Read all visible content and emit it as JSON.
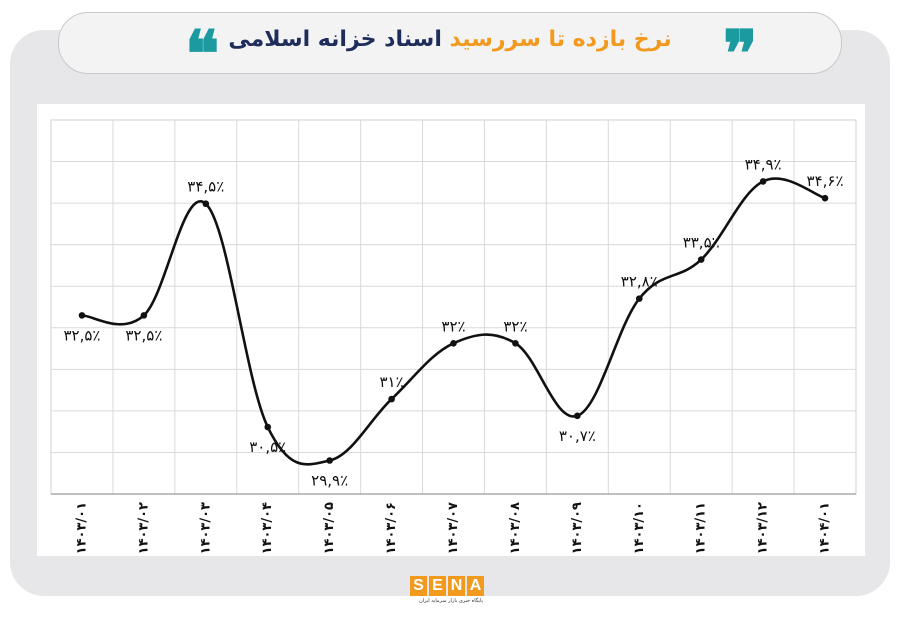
{
  "header": {
    "title_highlight": "نرخ بازده تا سررسید",
    "title_rest": " اسناد خزانه اسلامی",
    "quote_open": "❝",
    "quote_close": "❞"
  },
  "logo": {
    "letters": [
      "S",
      "E",
      "N",
      "A"
    ],
    "tagline": "پایگاه خبری بازار سرمایه ایران"
  },
  "chart_data": {
    "type": "line",
    "title": "نرخ بازده تا سررسید اسناد خزانه اسلامی",
    "categories": [
      "۱۴۰۳/۰۱",
      "۱۴۰۳/۰۲",
      "۱۴۰۳/۰۳",
      "۱۴۰۳/۰۴",
      "۱۴۰۳/۰۵",
      "۱۴۰۳/۰۶",
      "۱۴۰۳/۰۷",
      "۱۴۰۳/۰۸",
      "۱۴۰۳/۰۹",
      "۱۴۰۳/۱۰",
      "۱۴۰۳/۱۱",
      "۱۴۰۳/۱۲",
      "۱۴۰۴/۰۱"
    ],
    "values": [
      32.5,
      32.5,
      34.5,
      30.5,
      29.9,
      31,
      32,
      32,
      30.7,
      32.8,
      33.5,
      34.9,
      34.6
    ],
    "value_labels": [
      "۳۲,۵٪",
      "۳۲,۵٪",
      "۳۴,۵٪",
      "۳۰,۵٪",
      "۲۹,۹٪",
      "۳۱٪",
      "۳۲٪",
      "۳۲٪",
      "۳۰,۷٪",
      "۳۲,۸٪",
      "۳۳,۵٪",
      "۳۴,۹٪",
      "۳۴,۶٪"
    ],
    "label_position": [
      "below",
      "below",
      "above",
      "below",
      "below",
      "above",
      "above",
      "above",
      "below",
      "above",
      "above",
      "above",
      "above"
    ],
    "ylim": [
      29.3,
      36.0
    ],
    "grid": true,
    "line_color": "#111111"
  }
}
